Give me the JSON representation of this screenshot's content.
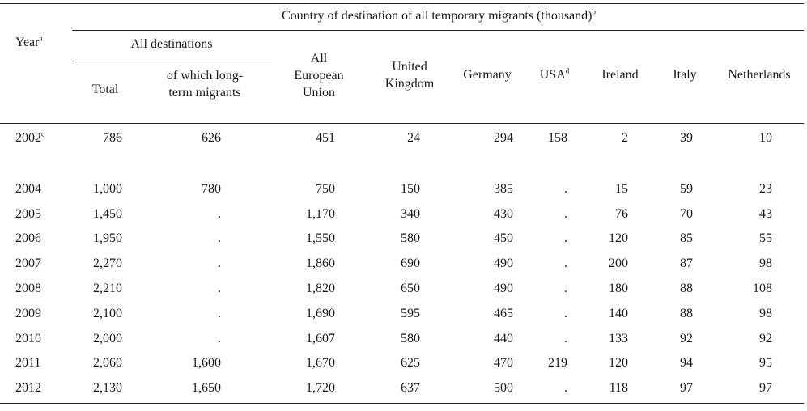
{
  "header": {
    "year": "Year",
    "year_sup": "a",
    "group_title": "Country of destination of all temporary migrants (thousand)",
    "group_sup": "b",
    "all_dest": "All destinations",
    "total": "Total",
    "long_term": "of which long-term migrants",
    "eu": "All European Union",
    "uk": "United Kingdom",
    "germany": "Germany",
    "usa": "USA",
    "usa_sup": "d",
    "ireland": "Ireland",
    "italy": "Italy",
    "netherlands": "Netherlands"
  },
  "rows": [
    {
      "year": "2002",
      "sup": "c",
      "cells": [
        "786",
        "626",
        "451",
        "24",
        "294",
        "158",
        "2",
        "39",
        "10"
      ]
    },
    {
      "year": "2004",
      "sup": "",
      "cells": [
        "1,000",
        "780",
        "750",
        "150",
        "385",
        ".",
        "15",
        "59",
        "23"
      ]
    },
    {
      "year": "2005",
      "sup": "",
      "cells": [
        "1,450",
        ".",
        "1,170",
        "340",
        "430",
        ".",
        "76",
        "70",
        "43"
      ]
    },
    {
      "year": "2006",
      "sup": "",
      "cells": [
        "1,950",
        ".",
        "1,550",
        "580",
        "450",
        ".",
        "120",
        "85",
        "55"
      ]
    },
    {
      "year": "2007",
      "sup": "",
      "cells": [
        "2,270",
        ".",
        "1,860",
        "690",
        "490",
        ".",
        "200",
        "87",
        "98"
      ]
    },
    {
      "year": "2008",
      "sup": "",
      "cells": [
        "2,210",
        ".",
        "1,820",
        "650",
        "490",
        ".",
        "180",
        "88",
        "108"
      ]
    },
    {
      "year": "2009",
      "sup": "",
      "cells": [
        "2,100",
        ".",
        "1,690",
        "595",
        "465",
        ".",
        "140",
        "88",
        "98"
      ]
    },
    {
      "year": "2010",
      "sup": "",
      "cells": [
        "2,000",
        ".",
        "1,607",
        "580",
        "440",
        ".",
        "133",
        "92",
        "92"
      ]
    },
    {
      "year": "2011",
      "sup": "",
      "cells": [
        "2,060",
        "1,600",
        "1,670",
        "625",
        "470",
        "219",
        "120",
        "94",
        "95"
      ]
    },
    {
      "year": "2012",
      "sup": "",
      "cells": [
        "2,130",
        "1,650",
        "1,720",
        "637",
        "500",
        ".",
        "118",
        "97",
        "97"
      ]
    }
  ]
}
